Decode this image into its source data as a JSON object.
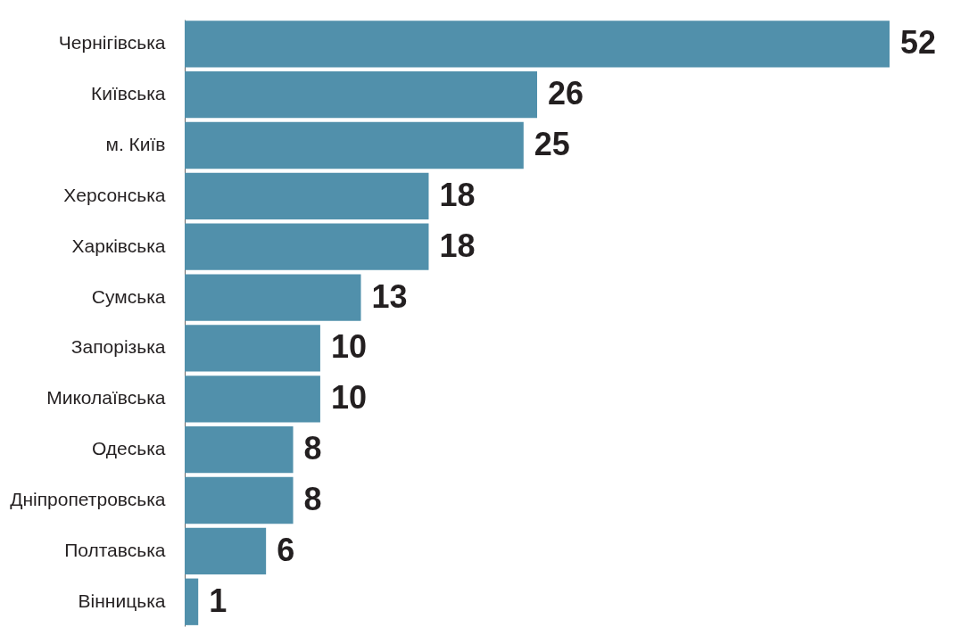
{
  "chart_data": {
    "type": "bar",
    "orientation": "horizontal",
    "categories": [
      "Чернігівська",
      "Київська",
      "м. Київ",
      "Херсонська",
      "Харківська",
      "Сумська",
      "Запорізька",
      "Миколаївська",
      "Одеська",
      "Дніпропетровська",
      "Полтавська",
      "Вінницька"
    ],
    "values": [
      52,
      26,
      25,
      18,
      18,
      13,
      10,
      10,
      8,
      8,
      6,
      1
    ],
    "color": "#5190ab",
    "data_labels": true,
    "tick_labels": "y"
  }
}
